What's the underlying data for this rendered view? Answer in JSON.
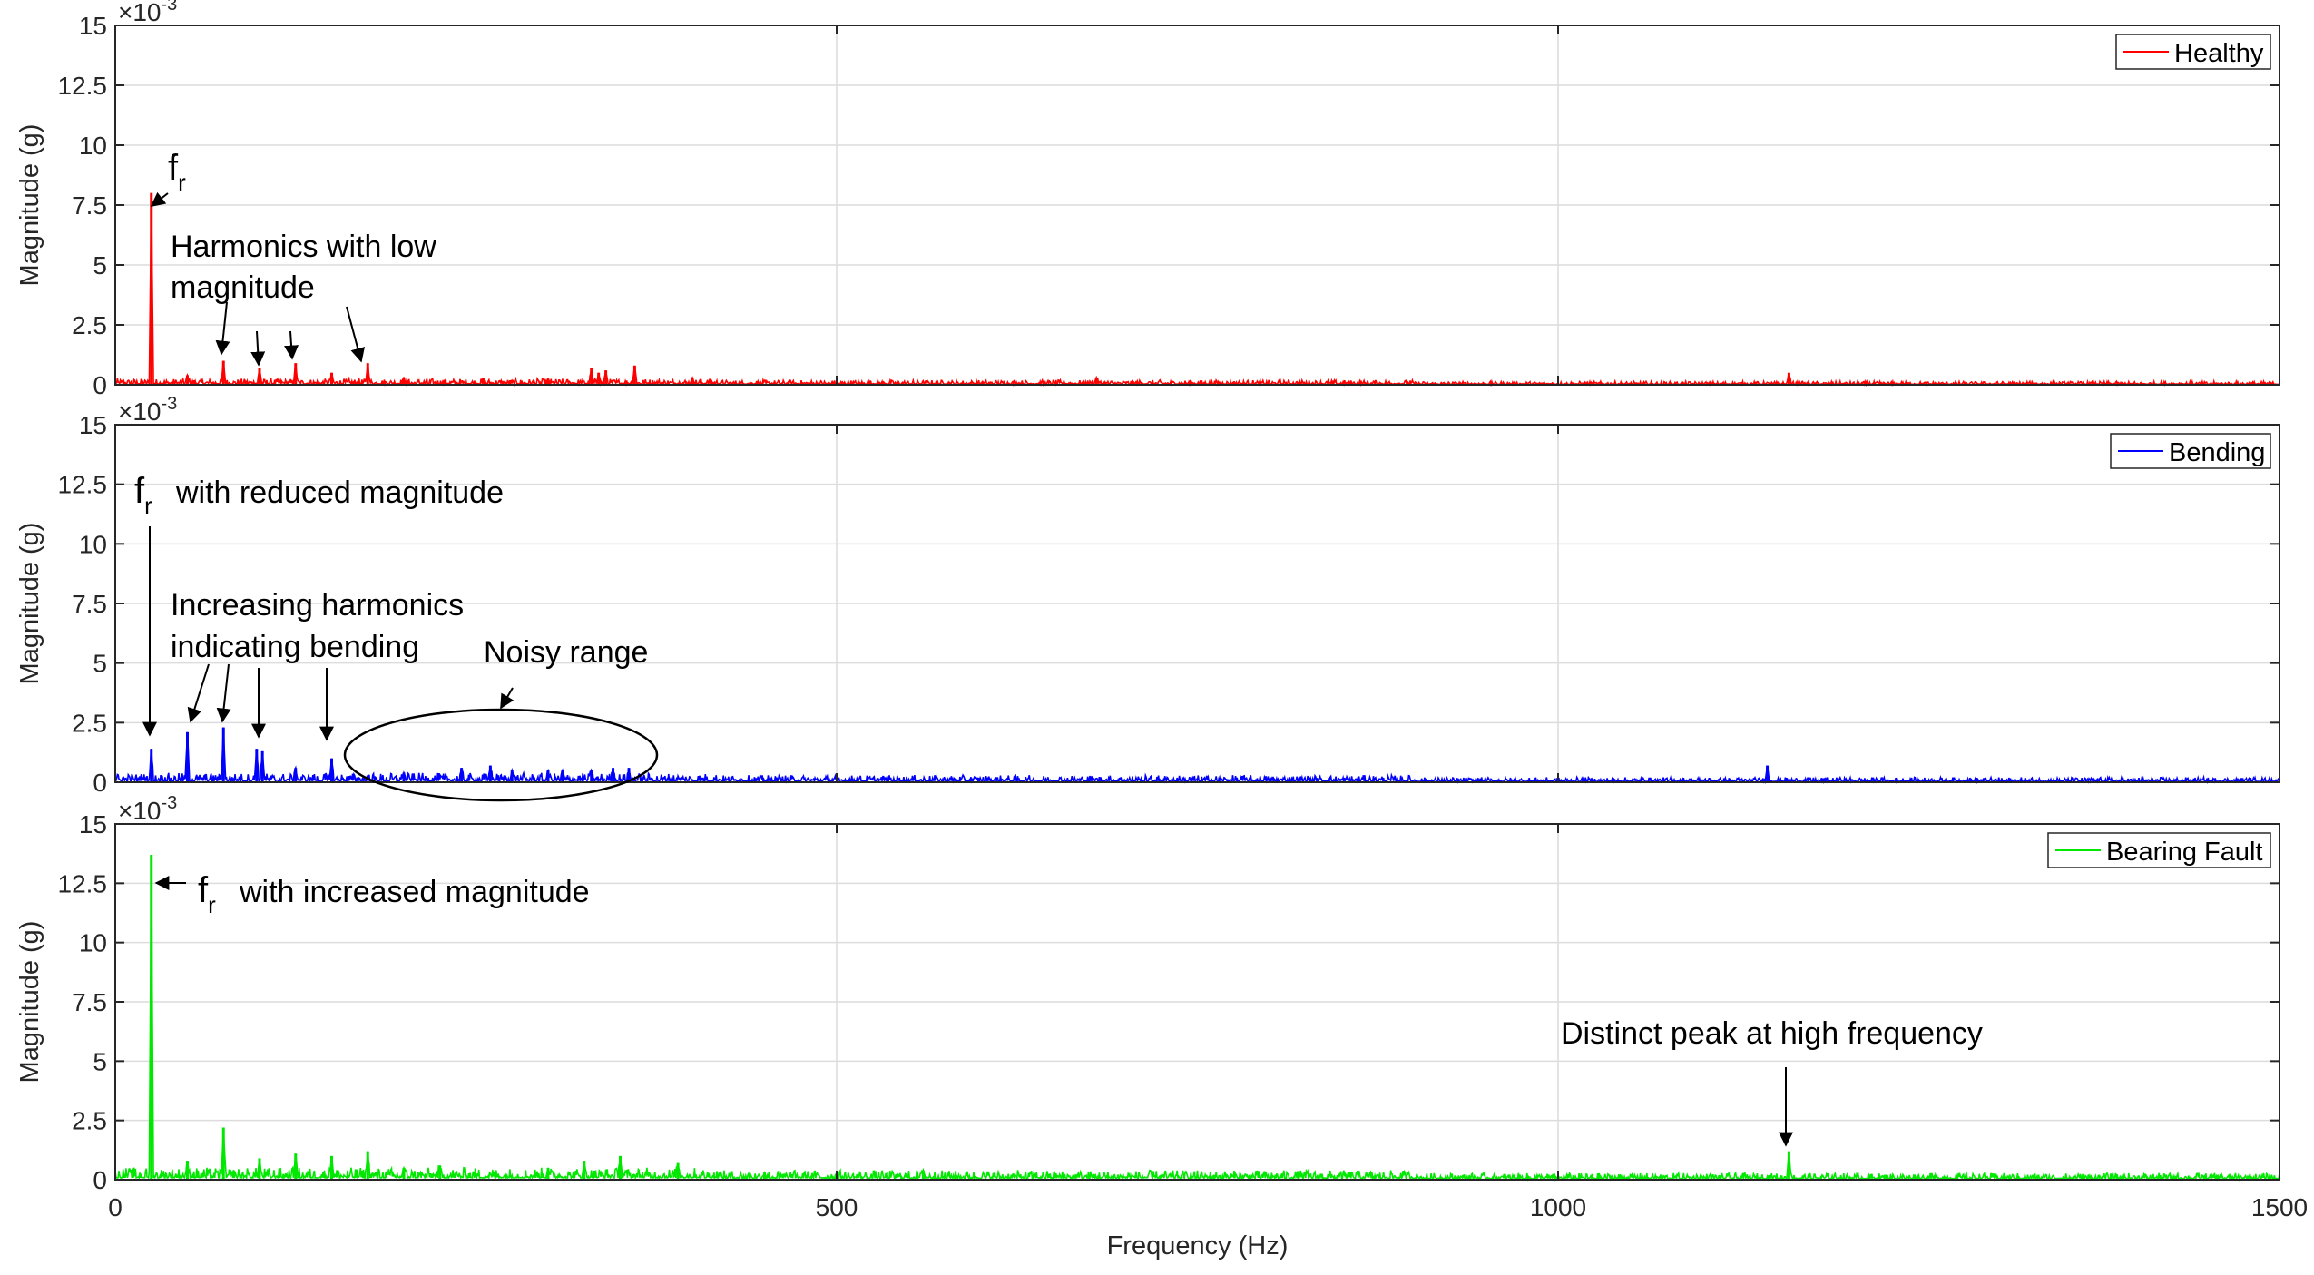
{
  "chart_data": {
    "type": "line",
    "xlabel": "Frequency (Hz)",
    "xlim": [
      0,
      1500
    ],
    "xticks": [
      0,
      500,
      1000,
      1500
    ],
    "ylabel": "Magnitude (g)",
    "ylim": [
      0,
      15
    ],
    "yticks": [
      0,
      2.5,
      5,
      7.5,
      10,
      12.5,
      15
    ],
    "y_exponent": "×10^-3",
    "exp_base": "×10",
    "exp_power": "-3",
    "grid": true,
    "panels": [
      {
        "name": "Healthy",
        "color": "#ff0000",
        "legend_position": "top-right",
        "peaks": [
          [
            25,
            8.0
          ],
          [
            50,
            0.4
          ],
          [
            75,
            1.0
          ],
          [
            100,
            0.7
          ],
          [
            125,
            0.9
          ],
          [
            150,
            0.5
          ],
          [
            175,
            0.9
          ],
          [
            200,
            0.3
          ],
          [
            255,
            0.25
          ],
          [
            300,
            0.25
          ],
          [
            330,
            0.7
          ],
          [
            335,
            0.5
          ],
          [
            340,
            0.6
          ],
          [
            360,
            0.8
          ],
          [
            400,
            0.3
          ],
          [
            680,
            0.3
          ],
          [
            1160,
            0.5
          ]
        ],
        "noise_level": 0.2,
        "annotations": [
          {
            "text": "f",
            "sub": "r",
            "x": 37,
            "y": 11.2
          },
          {
            "text": "Harmonics with low",
            "x": 38,
            "y": 6.2
          },
          {
            "text": "magnitude",
            "x": 38,
            "y": 4.3
          }
        ]
      },
      {
        "name": "Bending",
        "color": "#0000ff",
        "legend_position": "top-right",
        "peaks": [
          [
            25,
            1.4
          ],
          [
            50,
            2.1
          ],
          [
            75,
            2.3
          ],
          [
            98,
            1.4
          ],
          [
            102,
            1.3
          ],
          [
            125,
            0.6
          ],
          [
            150,
            1.0
          ],
          [
            200,
            0.4
          ],
          [
            240,
            0.6
          ],
          [
            260,
            0.7
          ],
          [
            275,
            0.5
          ],
          [
            300,
            0.5
          ],
          [
            310,
            0.5
          ],
          [
            330,
            0.5
          ],
          [
            345,
            0.6
          ],
          [
            356,
            0.6
          ],
          [
            1145,
            0.7
          ]
        ],
        "noise_level": 0.3,
        "annotations": [
          {
            "text": "f",
            "sub": "r",
            "x": 22,
            "y": 12.6
          },
          {
            "text": "with reduced magnitude",
            "x": 42,
            "y": 12.6
          },
          {
            "text": "Increasing harmonics",
            "x": 38,
            "y": 7.9
          },
          {
            "text": "indicating bending",
            "x": 38,
            "y": 6.0
          },
          {
            "text": "Noisy range",
            "x": 255,
            "y": 5.6
          }
        ]
      },
      {
        "name": "Bearing Fault",
        "color": "#00e800",
        "legend_position": "top-right",
        "peaks": [
          [
            25,
            13.7
          ],
          [
            50,
            0.8
          ],
          [
            75,
            2.2
          ],
          [
            100,
            0.9
          ],
          [
            125,
            1.1
          ],
          [
            150,
            1.0
          ],
          [
            175,
            1.2
          ],
          [
            200,
            0.5
          ],
          [
            225,
            0.6
          ],
          [
            300,
            0.5
          ],
          [
            325,
            0.8
          ],
          [
            350,
            1.0
          ],
          [
            390,
            0.7
          ],
          [
            450,
            0.3
          ],
          [
            560,
            0.4
          ],
          [
            1160,
            1.2
          ]
        ],
        "noise_level": 0.4,
        "annotations": [
          {
            "text": "f",
            "sub": "r",
            "x": 58,
            "y": 13.2
          },
          {
            "text": "with increased magnitude",
            "x": 86,
            "y": 13.2
          },
          {
            "text": "Distinct peak at high frequency",
            "x": 1000,
            "y": 6.6
          }
        ]
      }
    ]
  }
}
